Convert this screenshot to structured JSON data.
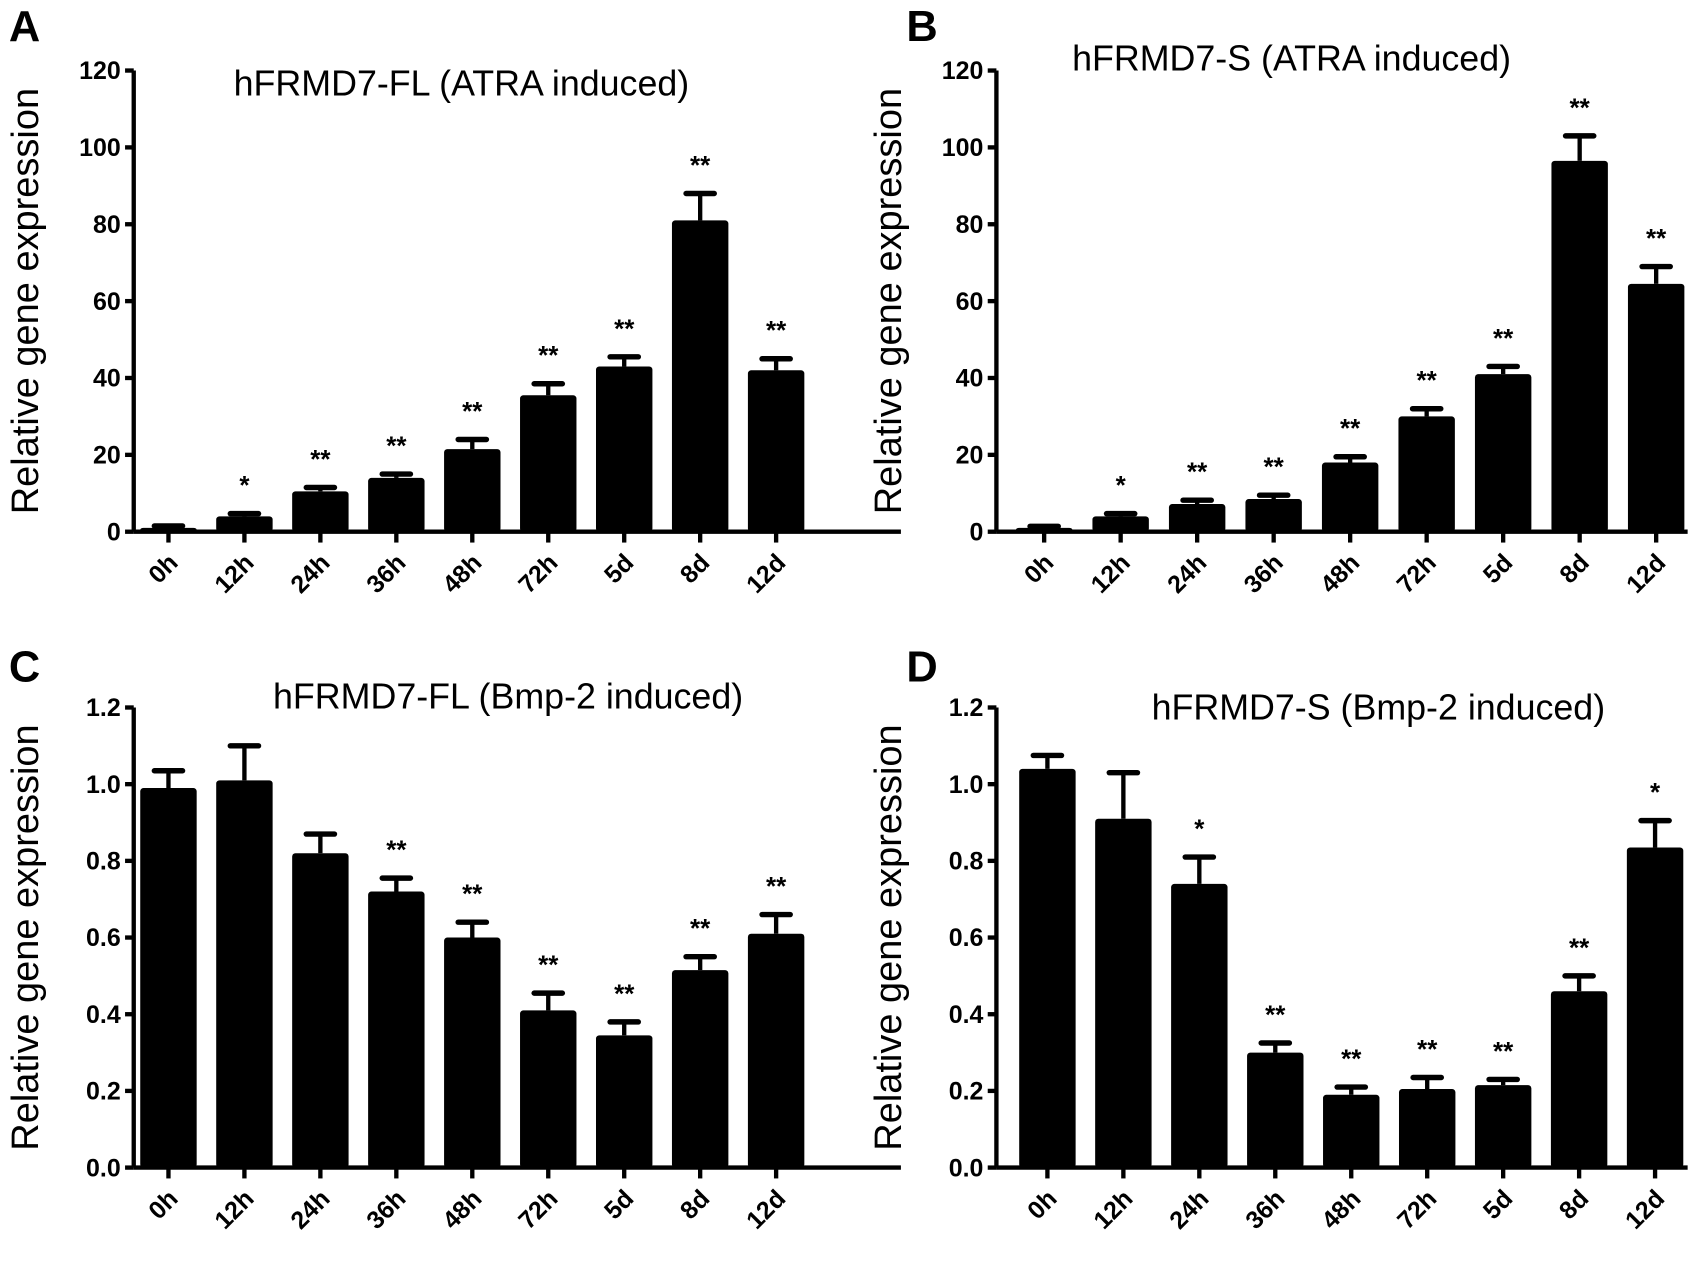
{
  "chart_data": [
    {
      "type": "bar",
      "panel": "A",
      "title": "hFRMD7-FL (ATRA induced)",
      "ylabel": "Relative gene expression",
      "xlabel": "",
      "categories": [
        "0h",
        "12h",
        "24h",
        "36h",
        "48h",
        "72h",
        "5d",
        "8d",
        "12d"
      ],
      "values": [
        1,
        4,
        10.5,
        14,
        21.5,
        35.5,
        43,
        81,
        42
      ],
      "errors": [
        0.5,
        0.7,
        1,
        1,
        2.5,
        3,
        2.5,
        7,
        3
      ],
      "significance": [
        "",
        "*",
        "**",
        "**",
        "**",
        "**",
        "**",
        "**",
        "**"
      ],
      "ylim": [
        0,
        120
      ],
      "yticks": [
        "0",
        "20",
        "40",
        "60",
        "80",
        "100",
        "120"
      ],
      "grid": false
    },
    {
      "type": "bar",
      "panel": "B",
      "title": "hFRMD7-S (ATRA induced)",
      "ylabel": "Relative gene expression",
      "xlabel": "",
      "categories": [
        "0h",
        "12h",
        "24h",
        "36h",
        "48h",
        "72h",
        "5d",
        "8d",
        "12d"
      ],
      "values": [
        1,
        4,
        7.2,
        8.5,
        18,
        30,
        41,
        96.5,
        64.5
      ],
      "errors": [
        0.4,
        0.7,
        1,
        1,
        1.5,
        2,
        2,
        6.5,
        4.5
      ],
      "significance": [
        "",
        "*",
        "**",
        "**",
        "**",
        "**",
        "**",
        "**",
        "**"
      ],
      "ylim": [
        0,
        120
      ],
      "yticks": [
        "0",
        "20",
        "40",
        "60",
        "80",
        "100",
        "120"
      ],
      "grid": false
    },
    {
      "type": "bar",
      "panel": "C",
      "title": "hFRMD7-FL (Bmp-2 induced)",
      "ylabel": "Relative gene expression",
      "xlabel": "",
      "categories": [
        "0h",
        "12h",
        "24h",
        "36h",
        "48h",
        "72h",
        "5d",
        "8d",
        "12d"
      ],
      "values": [
        0.99,
        1.01,
        0.82,
        0.72,
        0.6,
        0.41,
        0.345,
        0.515,
        0.61
      ],
      "errors": [
        0.045,
        0.09,
        0.05,
        0.035,
        0.04,
        0.045,
        0.035,
        0.035,
        0.05
      ],
      "significance": [
        "",
        "",
        "",
        "**",
        "**",
        "**",
        "**",
        "**",
        "**"
      ],
      "ylim": [
        0,
        1.2
      ],
      "yticks": [
        "0.0",
        "0.2",
        "0.4",
        "0.6",
        "0.8",
        "1.0",
        "1.2"
      ],
      "grid": false
    },
    {
      "type": "bar",
      "panel": "D",
      "title": "hFRMD7-S (Bmp-2 induced)",
      "ylabel": "Relative gene expression",
      "xlabel": "",
      "categories": [
        "0h",
        "12h",
        "24h",
        "36h",
        "48h",
        "72h",
        "5d",
        "8d",
        "12d"
      ],
      "values": [
        1.04,
        0.91,
        0.74,
        0.3,
        0.19,
        0.205,
        0.215,
        0.46,
        0.835
      ],
      "errors": [
        0.035,
        0.12,
        0.07,
        0.025,
        0.02,
        0.03,
        0.015,
        0.04,
        0.07
      ],
      "significance": [
        "",
        "",
        "*",
        "**",
        "**",
        "**",
        "**",
        "**",
        "*"
      ],
      "ylim": [
        0,
        1.2
      ],
      "yticks": [
        "0.0",
        "0.2",
        "0.4",
        "0.6",
        "0.8",
        "1.0",
        "1.2"
      ],
      "grid": false
    }
  ]
}
